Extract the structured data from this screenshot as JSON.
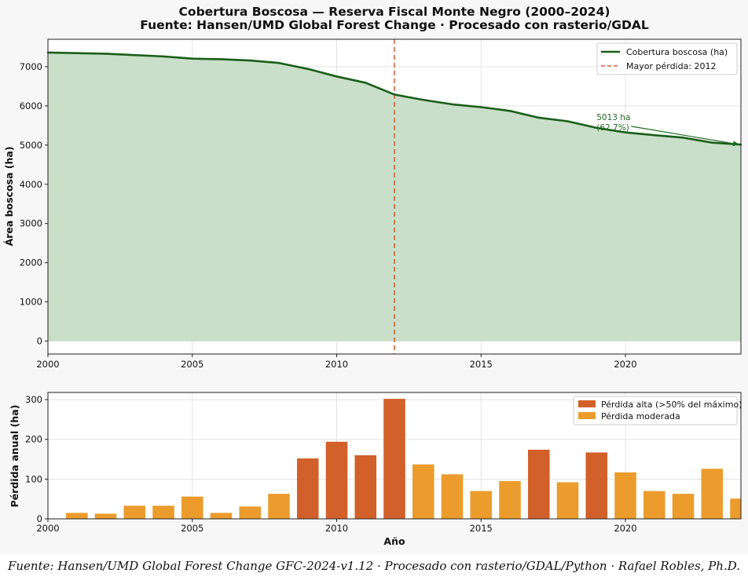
{
  "chart_data": [
    {
      "type": "area",
      "title": "Cobertura Boscosa — Reserva Fiscal Monte Negro (2000–2024)",
      "subtitle": "Fuente: Hansen/UMD Global Forest Change · Procesado con rasterio/GDAL",
      "ylabel": "Área boscosa (ha)",
      "xlabel": "",
      "xlim": [
        2000,
        2024
      ],
      "ylim": [
        -330,
        7700
      ],
      "x_ticks": [
        2000,
        2005,
        2010,
        2015,
        2020
      ],
      "y_ticks": [
        0,
        1000,
        2000,
        3000,
        4000,
        5000,
        6000,
        7000
      ],
      "grid": true,
      "legend_position": "top-right",
      "series": [
        {
          "name": "Cobertura boscosa (ha)",
          "color": "#1a5e1a",
          "fill_color": "#c9dfc9",
          "x": [
            2000,
            2001,
            2002,
            2003,
            2004,
            2005,
            2006,
            2007,
            2008,
            2009,
            2010,
            2011,
            2012,
            2013,
            2014,
            2015,
            2016,
            2017,
            2018,
            2019,
            2020,
            2021,
            2022,
            2023,
            2024
          ],
          "values": [
            7360,
            7345,
            7330,
            7295,
            7262,
            7205,
            7190,
            7158,
            7095,
            6943,
            6750,
            6590,
            6290,
            6153,
            6040,
            5968,
            5872,
            5698,
            5607,
            5440,
            5323,
            5253,
            5190,
            5063,
            5013
          ]
        }
      ],
      "reference_line": {
        "name": "Mayor pérdida: 2012",
        "x": 2012,
        "color": "#d2603a"
      },
      "annotation": {
        "line1": "5013 ha",
        "line2": "(62.7%)",
        "x": 2024,
        "y": 5013,
        "text_x": 2019,
        "text_y": 5520
      }
    },
    {
      "type": "bar",
      "xlabel": "Año",
      "ylabel": "Pérdida anual (ha)",
      "xlim": [
        2000,
        2024
      ],
      "ylim": [
        0,
        318
      ],
      "x_ticks": [
        2000,
        2005,
        2010,
        2015,
        2020
      ],
      "y_ticks": [
        0,
        100,
        200,
        300
      ],
      "grid": true,
      "legend_position": "top-right",
      "legend": [
        {
          "name": "Pérdida alta (>50% del máximo)",
          "color": "#d2602a"
        },
        {
          "name": "Pérdida moderada",
          "color": "#eb9c2c"
        }
      ],
      "x": [
        2001,
        2002,
        2003,
        2004,
        2005,
        2006,
        2007,
        2008,
        2009,
        2010,
        2011,
        2012,
        2013,
        2014,
        2015,
        2016,
        2017,
        2018,
        2019,
        2020,
        2021,
        2022,
        2023,
        2024
      ],
      "values": [
        15,
        13,
        33,
        33,
        56,
        15,
        31,
        63,
        152,
        194,
        160,
        302,
        137,
        112,
        70,
        95,
        174,
        92,
        167,
        117,
        70,
        63,
        126,
        51
      ],
      "high": [
        false,
        false,
        false,
        false,
        false,
        false,
        false,
        false,
        true,
        true,
        true,
        true,
        false,
        false,
        false,
        false,
        true,
        false,
        true,
        false,
        false,
        false,
        false,
        false
      ]
    }
  ],
  "caption": "Fuente: Hansen/UMD Global Forest Change GFC-2024-v1.12 · Procesado con rasterio/GDAL/Python · Rafael Robles, Ph.D."
}
